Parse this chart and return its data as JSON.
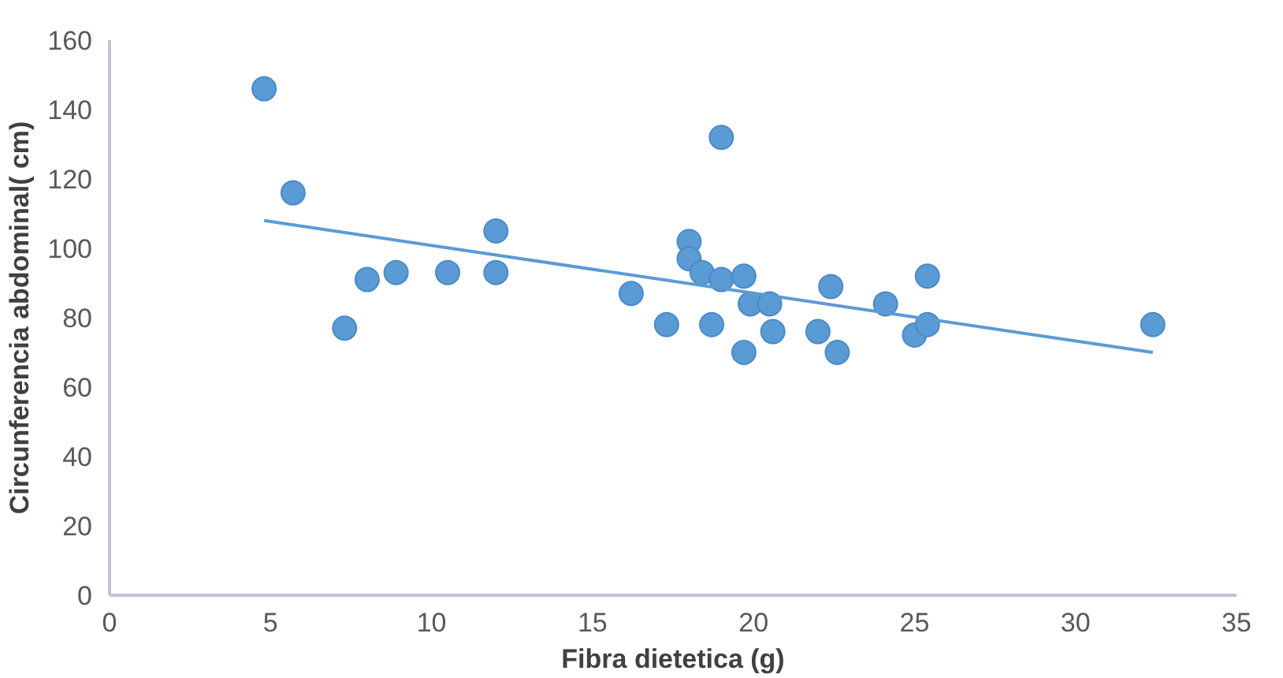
{
  "chart_data": {
    "type": "scatter",
    "xlabel": "Fibra dietetica (g)",
    "ylabel": "Circunferencia abdominal( cm)",
    "xlim": [
      0,
      35
    ],
    "ylim": [
      0,
      160
    ],
    "xticks": [
      0,
      5,
      10,
      15,
      20,
      25,
      30,
      35
    ],
    "yticks": [
      0,
      20,
      40,
      60,
      80,
      100,
      120,
      140,
      160
    ],
    "marker": "circle",
    "series": [
      {
        "color": "#5b9bd5",
        "x": [
          4.8,
          5.7,
          7.3,
          8.0,
          8.9,
          10.5,
          12.0,
          12.0,
          16.2,
          17.3,
          18.0,
          18.0,
          18.4,
          18.7,
          19.0,
          19.0,
          19.7,
          19.7,
          19.9,
          20.5,
          20.6,
          22.0,
          22.4,
          22.6,
          24.1,
          25.0,
          25.4,
          25.4,
          32.4
        ],
        "values": [
          146,
          116,
          77,
          91,
          93,
          93,
          105,
          93,
          87,
          78,
          102,
          97,
          93,
          78,
          132,
          91,
          92,
          70,
          84,
          84,
          76,
          76,
          89,
          70,
          84,
          75,
          78,
          92,
          78
        ]
      },
      {
        "type": "line",
        "color": "#5b9bd5",
        "marker": "none",
        "x": [
          4.8,
          32.4
        ],
        "values": [
          108,
          70
        ]
      }
    ]
  }
}
